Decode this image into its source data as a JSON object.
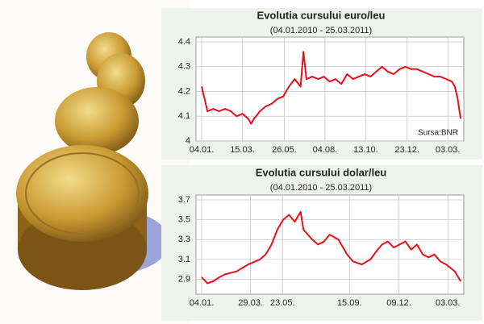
{
  "chart_data": [
    {
      "type": "line",
      "title": "Evolutia cursului euro/leu",
      "subtitle": "(04.01.2010 - 25.03.2011)",
      "annotation": "Sursa:BNR",
      "x": [
        0,
        10,
        20,
        30,
        40,
        50,
        60,
        70,
        80,
        85,
        90,
        100,
        110,
        120,
        130,
        140,
        150,
        160,
        170,
        175,
        180,
        190,
        200,
        210,
        220,
        230,
        240,
        250,
        260,
        270,
        280,
        290,
        300,
        310,
        320,
        330,
        340,
        350,
        360,
        370,
        380,
        390,
        400,
        410,
        420,
        430,
        435,
        440,
        445
      ],
      "series": [
        {
          "name": "euro/leu",
          "color": "#e8101a",
          "values": [
            4.22,
            4.12,
            4.13,
            4.12,
            4.13,
            4.12,
            4.1,
            4.11,
            4.09,
            4.07,
            4.09,
            4.12,
            4.14,
            4.15,
            4.17,
            4.18,
            4.22,
            4.25,
            4.22,
            4.36,
            4.25,
            4.26,
            4.25,
            4.26,
            4.24,
            4.25,
            4.23,
            4.27,
            4.25,
            4.26,
            4.27,
            4.26,
            4.28,
            4.3,
            4.28,
            4.27,
            4.29,
            4.3,
            4.29,
            4.29,
            4.28,
            4.27,
            4.26,
            4.26,
            4.25,
            4.24,
            4.22,
            4.17,
            4.09
          ]
        }
      ],
      "xlim": [
        0,
        445
      ],
      "xticks": [
        {
          "value": 0,
          "label": "04.01."
        },
        {
          "value": 70,
          "label": "15.03."
        },
        {
          "value": 142,
          "label": "26.05."
        },
        {
          "value": 212,
          "label": "04.08."
        },
        {
          "value": 282,
          "label": "13.10."
        },
        {
          "value": 353,
          "label": "23.12."
        },
        {
          "value": 423,
          "label": "03.03."
        }
      ],
      "ylim": [
        4,
        4.4
      ],
      "yticks": [
        4,
        4.1,
        4.2,
        4.3,
        4.4
      ],
      "grid": true
    },
    {
      "type": "line",
      "title": "Evolutia cursului dolar/leu",
      "subtitle": "(04.01.2010 - 25.03.2011)",
      "x": [
        0,
        10,
        20,
        30,
        40,
        60,
        80,
        100,
        110,
        120,
        130,
        140,
        150,
        160,
        170,
        175,
        190,
        200,
        210,
        220,
        235,
        250,
        260,
        275,
        290,
        300,
        310,
        320,
        330,
        340,
        350,
        360,
        370,
        380,
        390,
        400,
        410,
        420,
        435,
        445
      ],
      "series": [
        {
          "name": "dolar/leu",
          "color": "#e8101a",
          "values": [
            2.92,
            2.86,
            2.88,
            2.92,
            2.95,
            2.98,
            3.05,
            3.1,
            3.15,
            3.25,
            3.4,
            3.5,
            3.55,
            3.48,
            3.58,
            3.4,
            3.3,
            3.25,
            3.28,
            3.35,
            3.3,
            3.15,
            3.08,
            3.05,
            3.1,
            3.18,
            3.25,
            3.28,
            3.22,
            3.25,
            3.28,
            3.2,
            3.25,
            3.15,
            3.12,
            3.15,
            3.08,
            3.05,
            2.98,
            2.88
          ]
        }
      ],
      "xlim": [
        0,
        445
      ],
      "xticks": [
        {
          "value": 0,
          "label": "04.01."
        },
        {
          "value": 84,
          "label": "29.03."
        },
        {
          "value": 139,
          "label": "23.05."
        },
        {
          "value": 254,
          "label": "15.09."
        },
        {
          "value": 339,
          "label": "09.12."
        },
        {
          "value": 423,
          "label": "03.03."
        }
      ],
      "ylim": [
        2.75,
        3.7
      ],
      "yticks": [
        2.9,
        3.1,
        3.3,
        3.5,
        3.7
      ],
      "grid": true
    }
  ]
}
